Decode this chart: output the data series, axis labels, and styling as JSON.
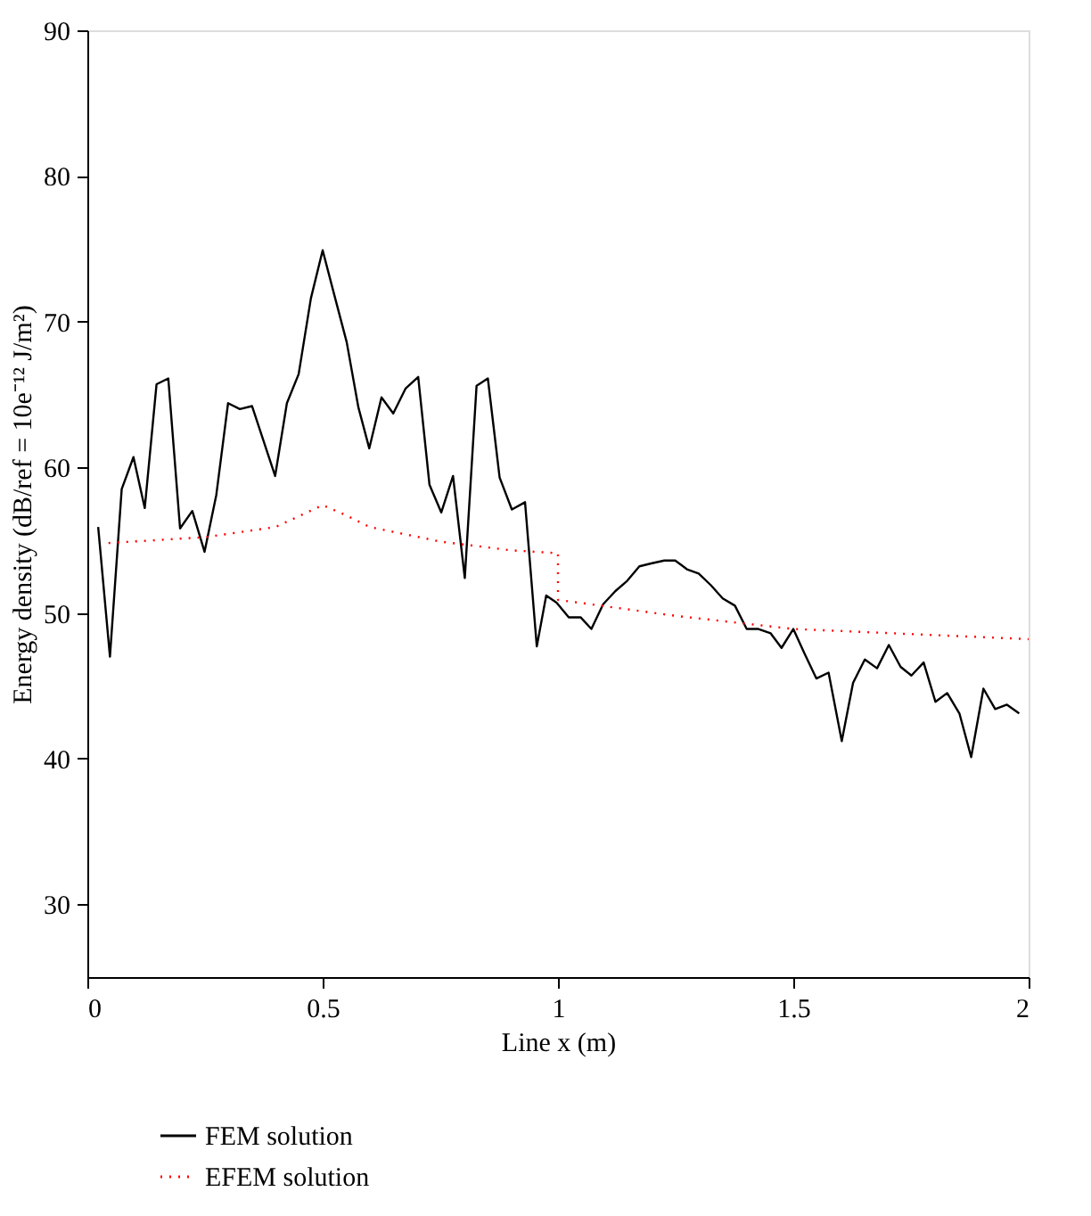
{
  "chart_data": {
    "type": "line",
    "xlabel": "Line x (m)",
    "ylabel": "Energy density (dB/ref = 10e⁻¹² J/m²)",
    "xlim": [
      0,
      2
    ],
    "xticks": [
      0,
      0.5,
      1,
      1.5,
      2
    ],
    "ylim": [
      25,
      90
    ],
    "yticks": [
      30,
      40,
      50,
      60,
      70,
      80,
      90
    ],
    "grid": false,
    "legend": "bottom left",
    "marker": "none",
    "series": [
      {
        "name": "FEM solution",
        "color": "#000000",
        "line_style": "solid",
        "x": [
          0.023,
          0.048,
          0.073,
          0.098,
          0.122,
          0.147,
          0.172,
          0.197,
          0.223,
          0.249,
          0.274,
          0.299,
          0.324,
          0.35,
          0.399,
          0.424,
          0.449,
          0.475,
          0.5,
          0.525,
          0.551,
          0.576,
          0.599,
          0.625,
          0.65,
          0.676,
          0.703,
          0.727,
          0.752,
          0.777,
          0.802,
          0.827,
          0.851,
          0.876,
          0.902,
          0.93,
          0.955,
          0.975,
          0.997,
          1.023,
          1.048,
          1.071,
          1.096,
          1.122,
          1.147,
          1.173,
          1.198,
          1.226,
          1.249,
          1.274,
          1.299,
          1.325,
          1.35,
          1.376,
          1.401,
          1.426,
          1.452,
          1.475,
          1.5,
          1.524,
          1.549,
          1.575,
          1.603,
          1.627,
          1.652,
          1.678,
          1.703,
          1.728,
          1.751,
          1.777,
          1.802,
          1.827,
          1.853,
          1.878,
          1.904,
          1.929,
          1.954,
          1.98
        ],
        "values": [
          55.9,
          47.0,
          58.5,
          60.7,
          57.2,
          65.7,
          66.1,
          55.8,
          57.0,
          54.2,
          58.1,
          64.4,
          64.0,
          64.2,
          59.4,
          64.4,
          66.4,
          71.6,
          74.9,
          71.8,
          68.6,
          64.1,
          61.3,
          64.8,
          63.7,
          65.4,
          66.2,
          58.8,
          56.9,
          59.4,
          52.4,
          65.6,
          66.1,
          59.3,
          57.1,
          57.6,
          47.7,
          51.2,
          50.7,
          49.7,
          49.7,
          48.9,
          50.6,
          51.5,
          52.2,
          53.2,
          53.4,
          53.6,
          53.6,
          53.0,
          52.7,
          51.9,
          51.0,
          50.5,
          48.9,
          48.9,
          48.6,
          47.6,
          48.9,
          47.2,
          45.5,
          45.9,
          41.2,
          45.2,
          46.8,
          46.2,
          47.8,
          46.3,
          45.7,
          46.6,
          43.9,
          44.5,
          43.1,
          40.1,
          44.8,
          43.4,
          43.7,
          43.1
        ]
      },
      {
        "name": "EFEM solution",
        "color": "#ff0000",
        "line_style": "dotted",
        "x": [
          0.045,
          0.25,
          0.4,
          0.5,
          0.55,
          0.6,
          0.75,
          0.9,
          1.0,
          1.0,
          1.25,
          1.5,
          2.0
        ],
        "values": [
          54.8,
          55.2,
          55.9,
          57.4,
          56.7,
          55.9,
          54.9,
          54.3,
          54.1,
          50.9,
          49.8,
          48.9,
          48.2
        ]
      }
    ]
  }
}
